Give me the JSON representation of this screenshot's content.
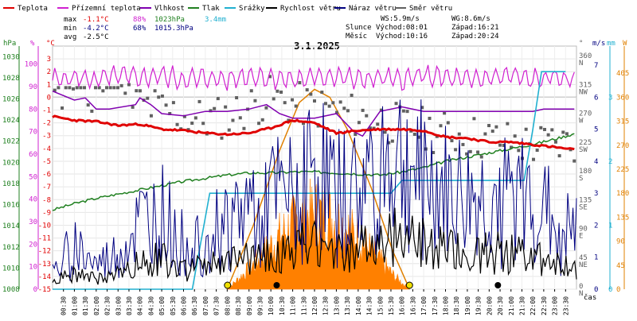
{
  "legend": [
    {
      "label": "Teplota",
      "color": "#e00000"
    },
    {
      "label": "Přízemní teplota",
      "color": "#d020d0"
    },
    {
      "label": "Vlhkost",
      "color": "#8000b0"
    },
    {
      "label": "Tlak",
      "color": "#208020"
    },
    {
      "label": "Srážky",
      "color": "#20b0d0"
    },
    {
      "label": "Rychlost větru",
      "color": "#000000"
    },
    {
      "label": "Náraz větru",
      "color": "#000080"
    },
    {
      "label": "Směr větru",
      "color": "#606060"
    }
  ],
  "stats": {
    "max": {
      "label": "max",
      "temp": "-1.1°C",
      "hum": "88%",
      "press": "1023hPa",
      "rain": "3.4mm"
    },
    "min": {
      "label": "min",
      "temp": "-4.2°C",
      "hum": "68%",
      "press": "1015.3hPa"
    },
    "avg": {
      "label": "avg",
      "temp": "-2.5°C"
    }
  },
  "wind": {
    "ws": "WS:5.9m/s",
    "wg": "WG:8.6m/s"
  },
  "sun": {
    "label": "Slunce",
    "rise": "Východ:08:01",
    "set": "Západ:16:21"
  },
  "moon": {
    "label": "Měsíc",
    "rise": "Východ:10:16",
    "set": "Západ:20:24"
  },
  "title": "3.1.2025",
  "colors": {
    "temp": "#e00000",
    "ground": "#d020d0",
    "hum": "#8000b0",
    "press": "#208020",
    "rain": "#20b0d0",
    "speed": "#000000",
    "gust": "#000080",
    "dir": "#606060",
    "sun": "#e08000",
    "solar": "#ff8000"
  },
  "axes": {
    "hpa_title": "hPa",
    "pct_title": "%",
    "c_title": "°C",
    "deg_title": "°",
    "ms_title": "m/s",
    "mm_title": "mm",
    "w_title": "W",
    "time_label": "čas"
  },
  "chart_data": {
    "type": "line",
    "title": "3.1.2025",
    "x_range_hours": [
      0,
      24
    ],
    "x_ticks": [
      "00:30",
      "01:00",
      "01:30",
      "02:00",
      "02:30",
      "03:00",
      "03:30",
      "04:00",
      "04:30",
      "05:00",
      "05:30",
      "06:00",
      "06:30",
      "07:00",
      "07:30",
      "08:00",
      "08:30",
      "09:00",
      "09:30",
      "10:00",
      "10:30",
      "11:00",
      "11:30",
      "12:00",
      "12:30",
      "13:00",
      "13:30",
      "14:00",
      "14:30",
      "15:00",
      "15:30",
      "16:00",
      "16:30",
      "17:00",
      "17:30",
      "18:00",
      "18:30",
      "19:00",
      "19:30",
      "20:00",
      "20:30",
      "21:00",
      "21:30",
      "22:00",
      "22:30",
      "23:00",
      "23:30"
    ],
    "axes": {
      "pressure_hPa": {
        "range": [
          1008,
          1031
        ],
        "ticks": [
          1008,
          1010,
          1012,
          1014,
          1016,
          1018,
          1020,
          1022,
          1024,
          1026,
          1028,
          1030
        ]
      },
      "humidity_pct": {
        "range": [
          0,
          108
        ],
        "ticks": [
          0,
          10,
          20,
          30,
          40,
          50,
          60,
          70,
          80,
          90,
          100
        ]
      },
      "temperature_C": {
        "range": [
          -15,
          4
        ],
        "ticks": [
          -15,
          -14,
          -13,
          -12,
          -11,
          -10,
          -9,
          -8,
          -7,
          -6,
          -5,
          -4,
          -3,
          -2,
          -1,
          0,
          1,
          2,
          3
        ]
      },
      "direction_deg": {
        "range": [
          0,
          380
        ],
        "ticks": [
          0,
          45,
          90,
          135,
          180,
          225,
          270,
          315,
          360
        ],
        "labels": [
          "N",
          "NE",
          "E",
          "SE",
          "S",
          "SW",
          "W",
          "NW",
          "N"
        ]
      },
      "wind_ms": {
        "range": [
          0,
          7.6
        ],
        "ticks": [
          0,
          1,
          2,
          3,
          4,
          5,
          6,
          7
        ]
      },
      "rain_mm": {
        "range": [
          0,
          3.8
        ],
        "ticks": [
          0,
          1,
          2,
          3
        ]
      },
      "solar_W": {
        "range": [
          0,
          456
        ],
        "ticks": [
          0,
          45,
          90,
          135,
          180,
          225,
          270,
          315,
          360,
          405
        ]
      }
    },
    "series": [
      {
        "name": "Teplota",
        "unit": "°C",
        "x": [
          0,
          1,
          2,
          3,
          4,
          5,
          6,
          7,
          8,
          9,
          10,
          11,
          12,
          13,
          14,
          15,
          16,
          17,
          18,
          19,
          20,
          21,
          22,
          23,
          23.9
        ],
        "y": [
          -1.5,
          -1.8,
          -1.9,
          -2.2,
          -2.1,
          -2.5,
          -2.6,
          -2.8,
          -2.9,
          -2.8,
          -2.4,
          -1.8,
          -2.0,
          -2.8,
          -2.6,
          -2.5,
          -2.5,
          -2.6,
          -3.1,
          -3.2,
          -3.5,
          -3.5,
          -3.7,
          -3.9,
          -4.1
        ]
      },
      {
        "name": "Přízemní teplota",
        "unit": "%",
        "x": [
          0,
          1,
          2,
          3,
          4,
          5,
          6,
          7,
          8,
          9,
          10,
          11,
          12,
          13,
          14,
          15,
          16,
          17,
          18,
          19,
          20,
          21,
          22,
          23,
          23.9
        ],
        "y": [
          93,
          94,
          93,
          95,
          94,
          95,
          93,
          94,
          93,
          95,
          94,
          93,
          94,
          95,
          93,
          94,
          93,
          95,
          94,
          93,
          94,
          95,
          93,
          94,
          93
        ]
      },
      {
        "name": "Vlhkost",
        "unit": "%",
        "x": [
          0,
          1,
          1.5,
          2,
          2.6,
          3.8,
          4,
          4.5,
          5,
          6,
          7,
          8,
          9,
          9.8,
          10.4,
          11,
          12,
          13,
          13.8,
          14.2,
          15,
          16,
          17,
          18,
          19,
          20,
          21,
          22,
          22.5,
          23.9
        ],
        "y": [
          88,
          84,
          85,
          80,
          80,
          82,
          85,
          82,
          78,
          77,
          79,
          79,
          80,
          82,
          78,
          76,
          76,
          78,
          70,
          68,
          79,
          81,
          79,
          79,
          79,
          79,
          79,
          79,
          80,
          80
        ]
      },
      {
        "name": "Tlak",
        "unit": "hPa",
        "x": [
          0,
          1,
          2,
          3,
          4,
          5,
          6,
          7,
          8,
          9,
          10,
          11,
          12,
          13,
          14,
          15,
          16,
          17,
          18,
          19,
          20,
          21,
          22,
          23,
          23.9
        ],
        "y": [
          1015.5,
          1016.1,
          1016.6,
          1017.0,
          1017.4,
          1017.8,
          1018.2,
          1018.5,
          1018.8,
          1019.0,
          1019.0,
          1019.1,
          1019.1,
          1019.0,
          1018.9,
          1018.8,
          1019.1,
          1019.5,
          1020.1,
          1020.5,
          1020.9,
          1021.3,
          1021.7,
          1022.2,
          1022.7
        ]
      },
      {
        "name": "Srážky",
        "unit": "mm",
        "x": [
          0,
          6.4,
          7.2,
          7.4,
          8,
          15,
          15.5,
          16,
          17,
          18,
          19,
          20,
          21,
          21.6,
          22,
          22.4,
          23.5
        ],
        "y": [
          0,
          0,
          1.5,
          1.5,
          1.5,
          1.5,
          1.5,
          1.7,
          1.7,
          1.7,
          1.7,
          1.7,
          1.7,
          1.7,
          2.5,
          3.4,
          3.4
        ]
      },
      {
        "name": "Rychlost větru",
        "unit": "m/s",
        "ws_max": 5.9
      },
      {
        "name": "Náraz větru",
        "unit": "m/s",
        "wg_max": 8.6
      },
      {
        "name": "Směr větru",
        "unit": "°"
      },
      {
        "name": "Sluneční svit",
        "unit": "W",
        "x": [
          8.0,
          9.2,
          10.4,
          11.3,
          12.0,
          12.7,
          13.5,
          14.6,
          15.6,
          16.35
        ],
        "y": [
          0,
          120,
          260,
          350,
          375,
          360,
          300,
          190,
          70,
          0
        ]
      }
    ]
  }
}
